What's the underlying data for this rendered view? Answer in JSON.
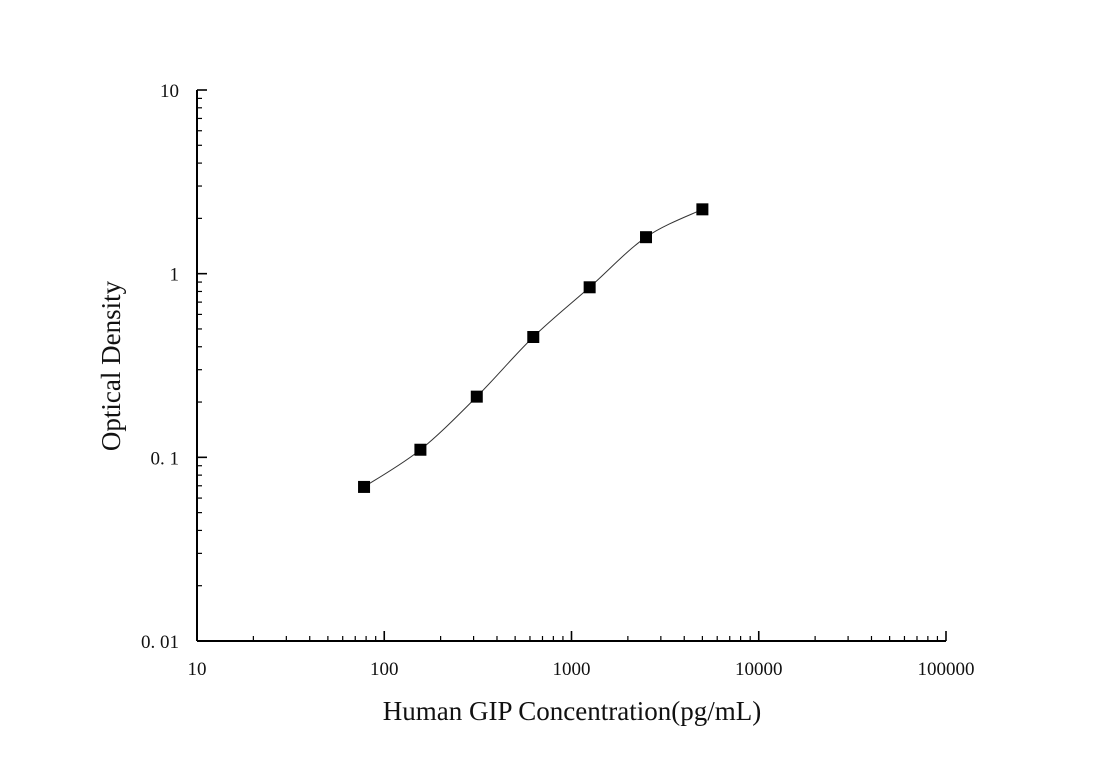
{
  "chart_data": {
    "type": "scatter",
    "title": "",
    "xlabel": "Human GIP Concentration(pg/mL)",
    "ylabel": "Optical Density",
    "x_scale": "log",
    "y_scale": "log",
    "xlim": [
      10,
      100000
    ],
    "ylim": [
      0.01,
      10
    ],
    "x_ticks": [
      10,
      100,
      1000,
      10000,
      100000
    ],
    "x_tick_labels": [
      "10",
      "100",
      "1000",
      "10000",
      "100000"
    ],
    "y_ticks": [
      0.01,
      0.1,
      1,
      10
    ],
    "y_tick_labels": [
      "0. 01",
      "0. 1",
      "1",
      "10"
    ],
    "grid": false,
    "legend": "none",
    "series": [
      {
        "x": [
          78,
          156,
          312,
          625,
          1250,
          2500,
          5000
        ],
        "y": [
          0.069,
          0.11,
          0.214,
          0.452,
          0.843,
          1.58,
          2.24
        ],
        "marker": "square",
        "line": "smooth",
        "color": "#000000"
      }
    ]
  }
}
